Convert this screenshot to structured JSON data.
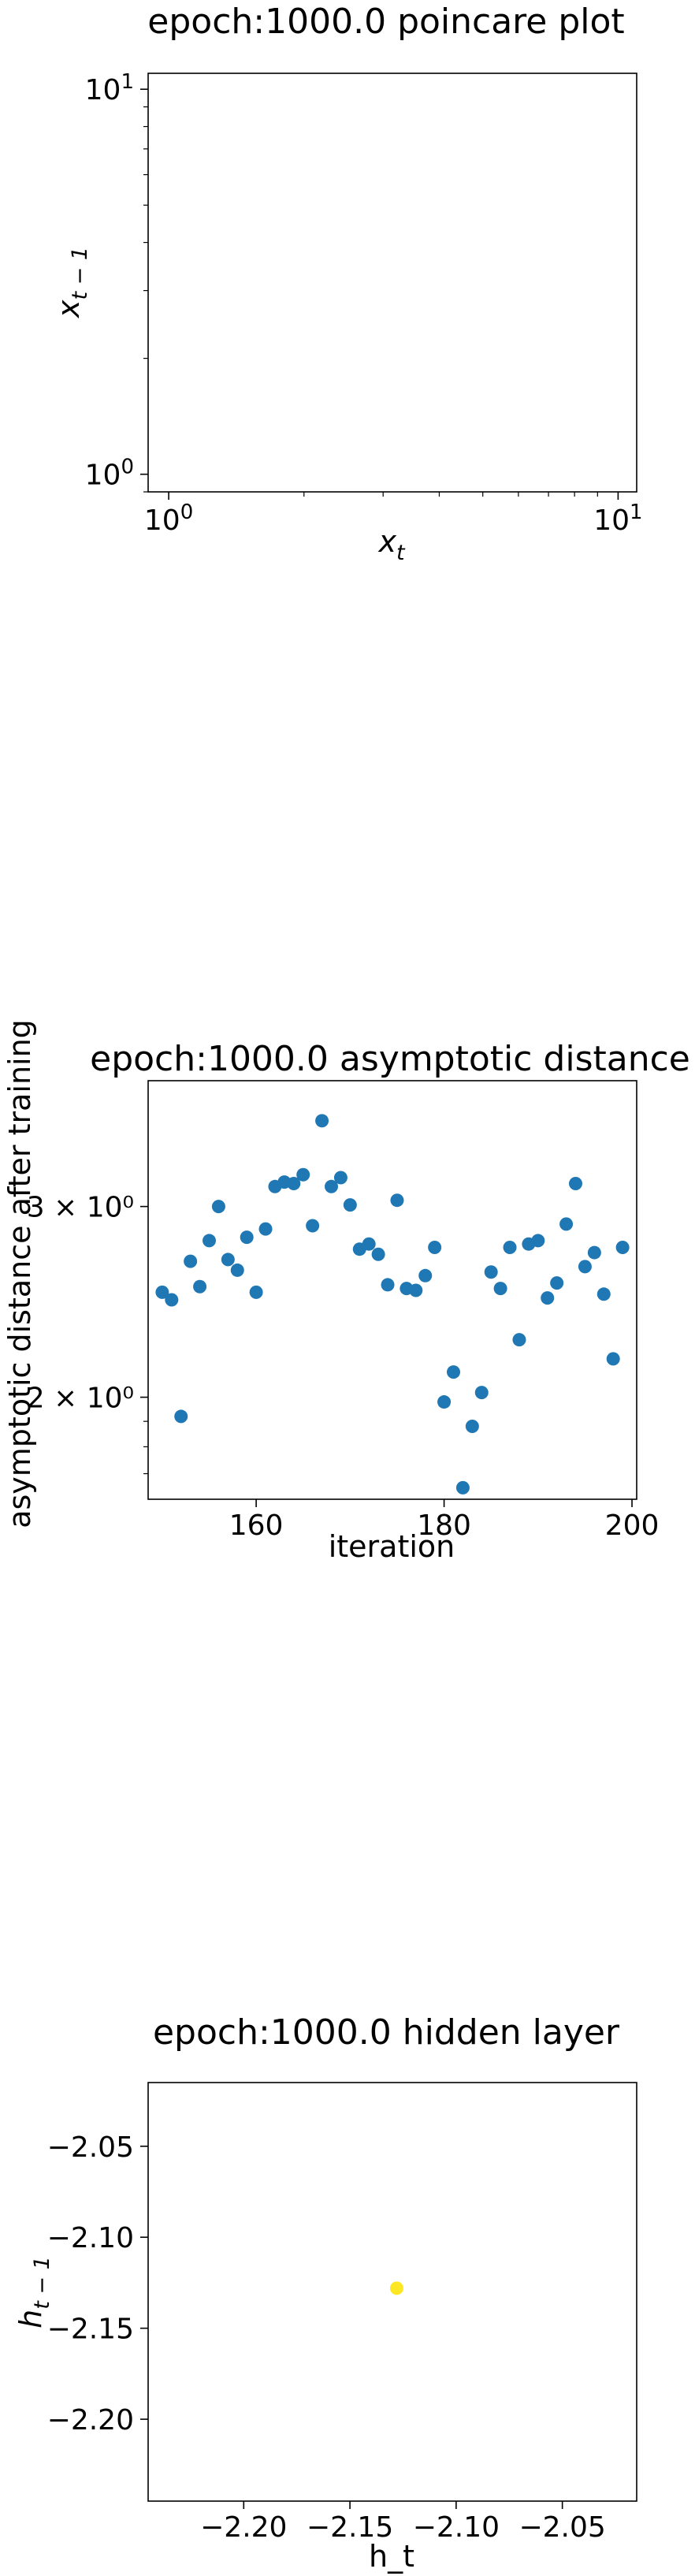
{
  "chart_data": [
    {
      "type": "scatter",
      "title": "epoch:1000.0 poincare plot",
      "xlabel": "x_t",
      "ylabel": "x_{t-1}",
      "xscale": "log",
      "yscale": "log",
      "xlim": [
        0.9,
        11
      ],
      "ylim": [
        0.9,
        11
      ],
      "xticks": [
        {
          "value": 1,
          "base": "10",
          "exp": "0"
        },
        {
          "value": 10,
          "base": "10",
          "exp": "1"
        }
      ],
      "yticks": [
        {
          "value": 1,
          "base": "10",
          "exp": "0"
        },
        {
          "value": 10,
          "base": "10",
          "exp": "1"
        }
      ],
      "grid": false,
      "x": [],
      "y": []
    },
    {
      "type": "scatter",
      "title": "epoch:1000.0 asymptotic distance",
      "xlabel": "iteration",
      "ylabel": "asymptotic distance after training",
      "yscale": "log",
      "xlim": [
        148.5,
        200.5
      ],
      "ylim": [
        1.61,
        3.92
      ],
      "xticks": [
        {
          "value": 160,
          "label": "160"
        },
        {
          "value": 180,
          "label": "180"
        },
        {
          "value": 200,
          "label": "200"
        }
      ],
      "yticks": [
        {
          "value": 2,
          "label": "2 × 10⁰"
        },
        {
          "value": 3,
          "label": "3 × 10⁰"
        }
      ],
      "grid": false,
      "color": "#1f77b4",
      "x": [
        150,
        151,
        152,
        153,
        154,
        155,
        156,
        157,
        158,
        159,
        160,
        161,
        162,
        163,
        164,
        165,
        166,
        167,
        168,
        169,
        170,
        171,
        172,
        173,
        174,
        175,
        176,
        177,
        178,
        179,
        180,
        181,
        182,
        183,
        184,
        185,
        186,
        187,
        188,
        189,
        190,
        191,
        192,
        193,
        194,
        195,
        196,
        197,
        198,
        199
      ],
      "y": [
        2.5,
        2.46,
        1.92,
        2.67,
        2.53,
        2.79,
        3.0,
        2.68,
        2.62,
        2.81,
        2.5,
        2.86,
        3.13,
        3.16,
        3.15,
        3.21,
        2.88,
        3.6,
        3.13,
        3.19,
        3.01,
        2.74,
        2.77,
        2.71,
        2.54,
        3.04,
        2.52,
        2.51,
        2.59,
        2.75,
        1.98,
        2.11,
        1.65,
        1.88,
        2.02,
        2.61,
        2.52,
        2.75,
        2.26,
        2.77,
        2.79,
        2.47,
        2.55,
        2.89,
        3.15,
        2.64,
        2.72,
        2.49,
        2.17,
        2.75
      ]
    },
    {
      "type": "scatter",
      "title": "epoch:1000.0 hidden layer",
      "xlabel": "h_t",
      "ylabel": "h_{t-1}",
      "xlim": [
        -2.245,
        -2.015
      ],
      "ylim": [
        -2.245,
        -2.015
      ],
      "xticks": [
        -2.2,
        -2.15,
        -2.1,
        -2.05
      ],
      "yticks": [
        -2.05,
        -2.1,
        -2.15,
        -2.2
      ],
      "grid": false,
      "color": "#fde725",
      "x": [
        -2.128
      ],
      "y": [
        -2.128
      ]
    }
  ]
}
